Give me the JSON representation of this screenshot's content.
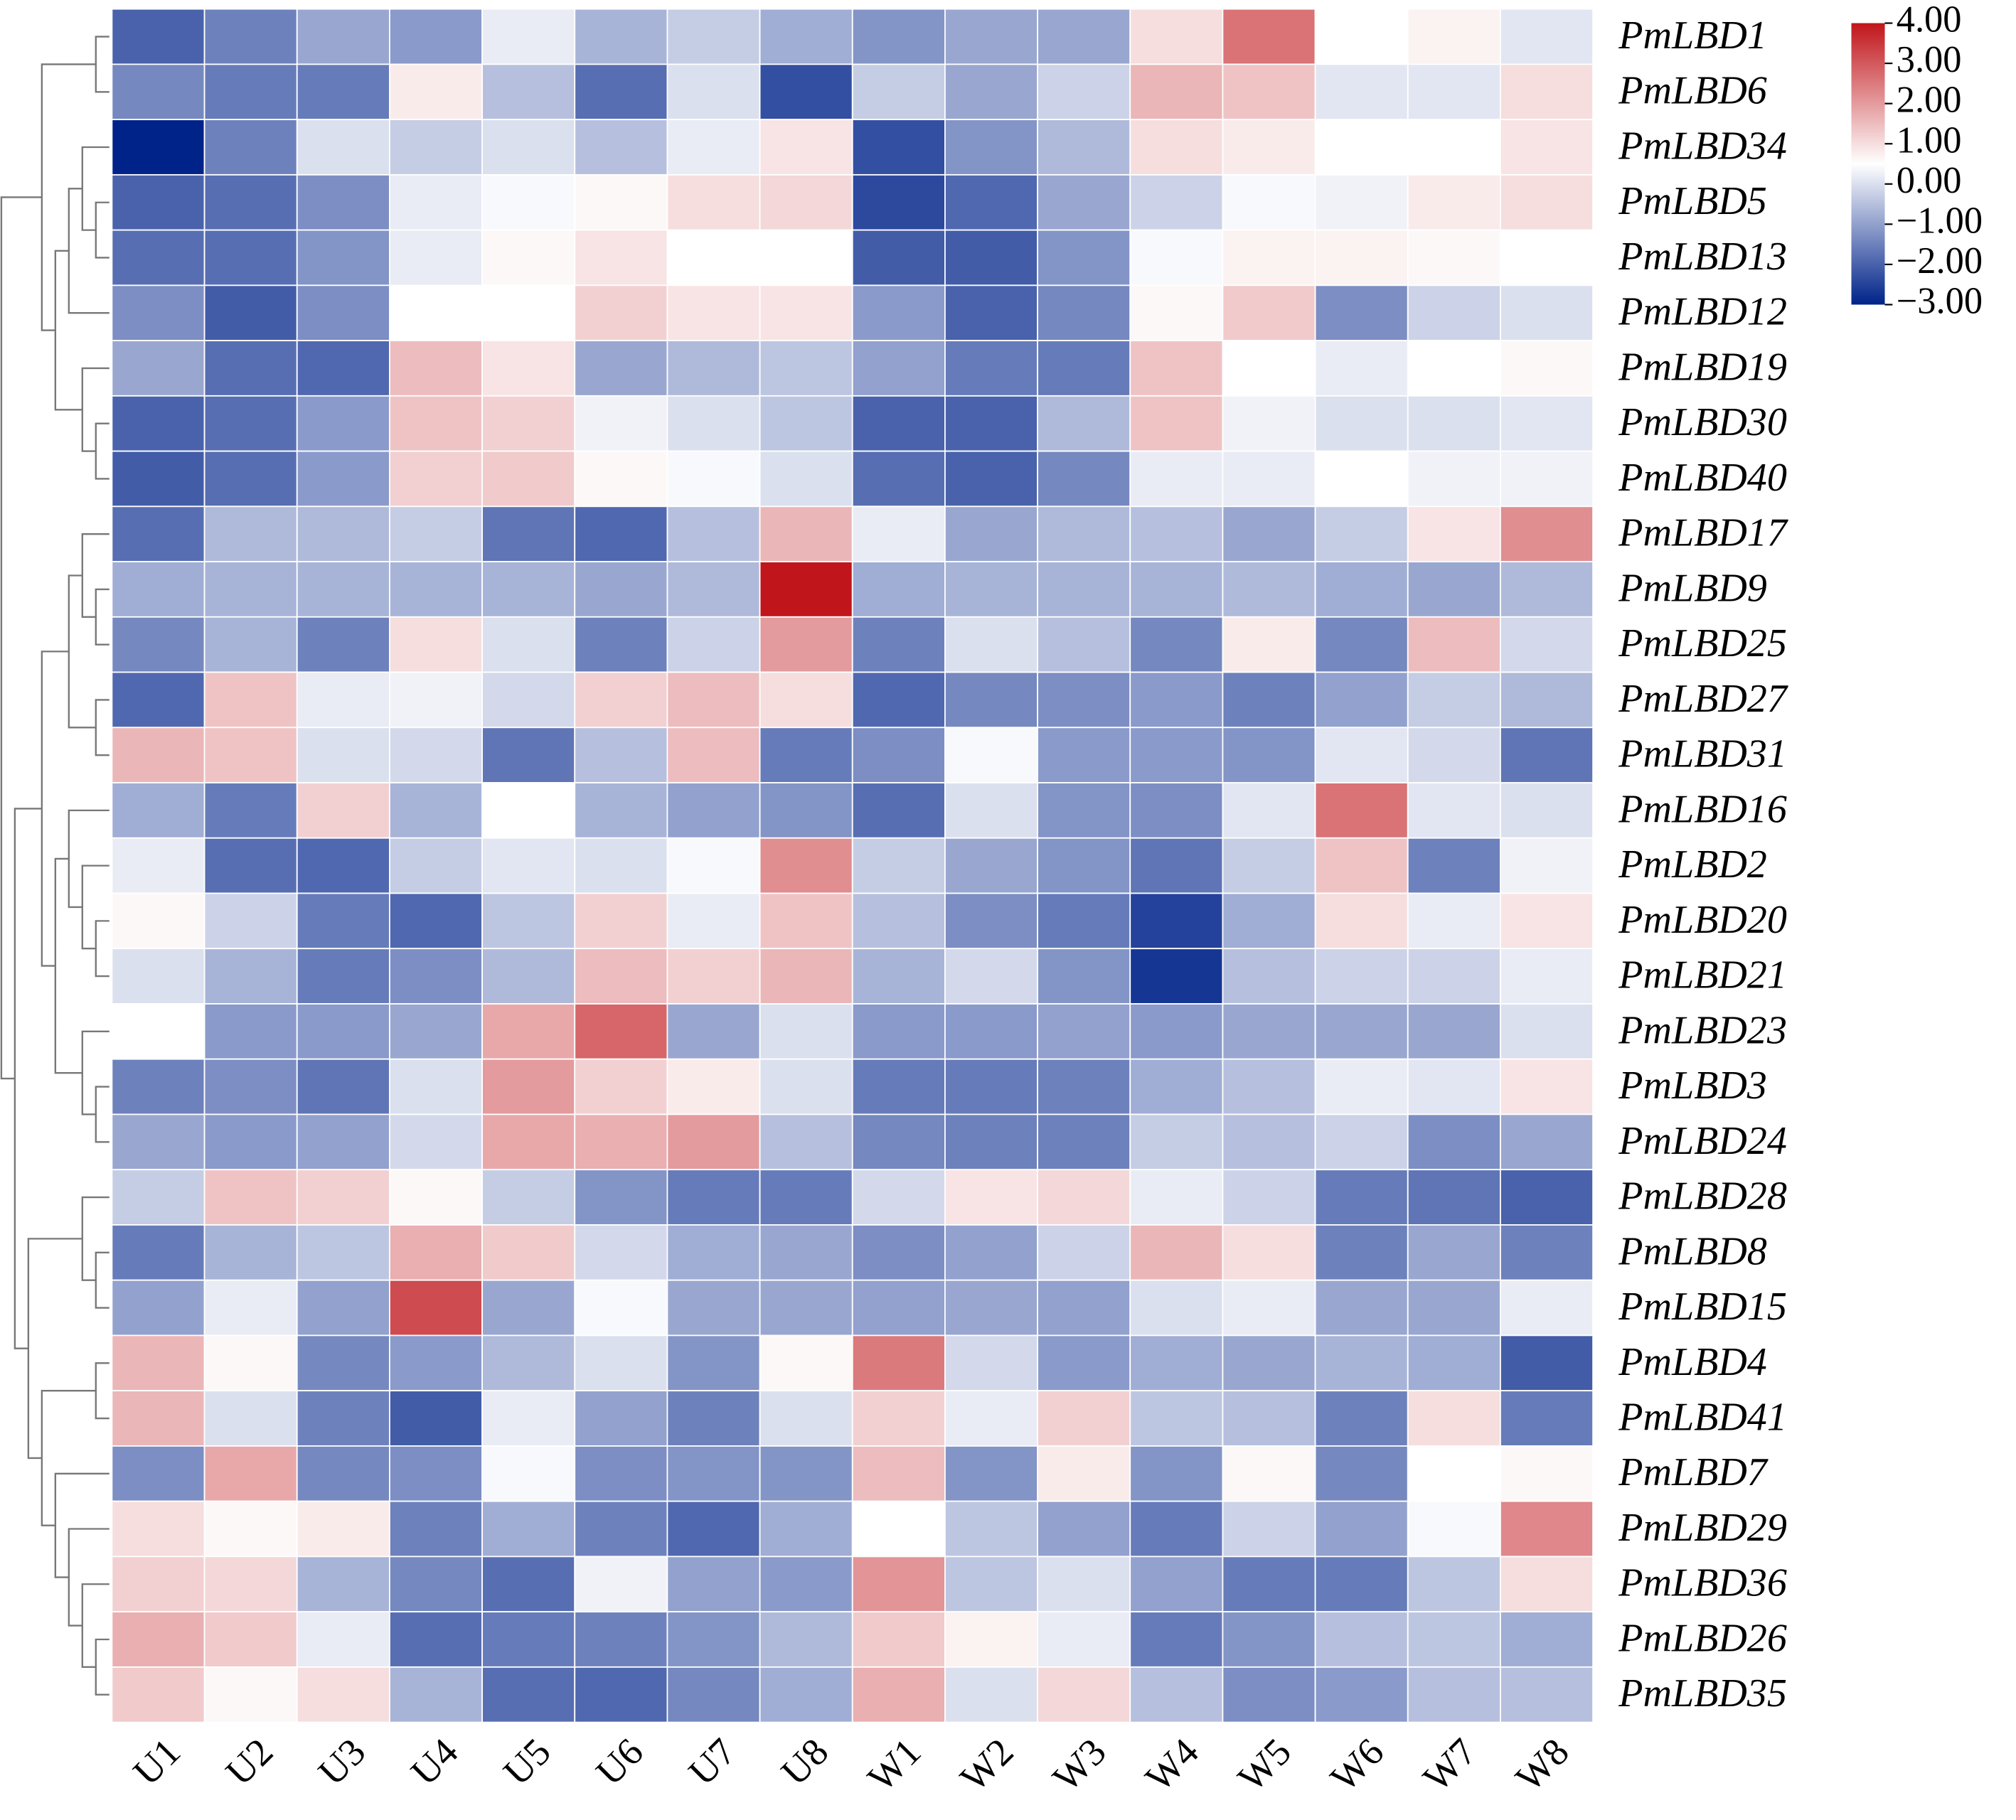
{
  "chart_data": {
    "type": "heatmap",
    "rows": [
      "PmLBD1",
      "PmLBD6",
      "PmLBD34",
      "PmLBD5",
      "PmLBD13",
      "PmLBD12",
      "PmLBD19",
      "PmLBD30",
      "PmLBD40",
      "PmLBD17",
      "PmLBD9",
      "PmLBD25",
      "PmLBD27",
      "PmLBD31",
      "PmLBD16",
      "PmLBD2",
      "PmLBD20",
      "PmLBD21",
      "PmLBD23",
      "PmLBD3",
      "PmLBD24",
      "PmLBD28",
      "PmLBD8",
      "PmLBD15",
      "PmLBD4",
      "PmLBD41",
      "PmLBD7",
      "PmLBD29",
      "PmLBD36",
      "PmLBD26",
      "PmLBD35"
    ],
    "columns": [
      "U1",
      "U2",
      "U3",
      "U4",
      "U5",
      "U6",
      "U7",
      "U8",
      "W1",
      "W2",
      "W3",
      "W4",
      "W5",
      "W6",
      "W7",
      "W8"
    ],
    "values": [
      [
        -2.0,
        -1.5,
        -0.9,
        -1.1,
        0.2,
        -0.7,
        -0.3,
        -0.8,
        -1.2,
        -0.9,
        -0.9,
        1.0,
        2.6,
        0.5,
        0.7,
        0.1
      ],
      [
        -1.4,
        -1.6,
        -1.6,
        0.8,
        -0.5,
        -1.8,
        0.0,
        -2.3,
        -0.3,
        -0.9,
        -0.2,
        1.6,
        1.4,
        0.1,
        0.1,
        1.0
      ],
      [
        -3.0,
        -1.5,
        0.0,
        -0.3,
        0.0,
        -0.5,
        0.2,
        0.9,
        -2.3,
        -1.2,
        -0.6,
        1.0,
        0.8,
        0.5,
        0.5,
        0.9
      ],
      [
        -2.0,
        -1.8,
        -1.3,
        0.2,
        0.4,
        0.6,
        1.0,
        1.1,
        -2.4,
        -1.9,
        -0.9,
        -0.2,
        0.4,
        0.3,
        0.8,
        1.0
      ],
      [
        -1.8,
        -1.8,
        -1.2,
        0.2,
        0.6,
        0.9,
        0.5,
        0.5,
        -2.1,
        -2.1,
        -1.2,
        0.4,
        0.7,
        0.7,
        0.6,
        0.5
      ],
      [
        -1.3,
        -2.1,
        -1.3,
        0.5,
        0.5,
        1.2,
        0.9,
        0.9,
        -1.1,
        -2.0,
        -1.4,
        0.6,
        1.3,
        -1.3,
        -0.2,
        0.0
      ],
      [
        -0.9,
        -1.8,
        -1.9,
        1.5,
        0.9,
        -0.9,
        -0.6,
        -0.4,
        -1.0,
        -1.6,
        -1.6,
        1.4,
        0.5,
        0.2,
        0.5,
        0.6
      ],
      [
        -2.0,
        -1.8,
        -1.1,
        1.4,
        1.2,
        0.3,
        0.0,
        -0.4,
        -2.0,
        -2.0,
        -0.6,
        1.4,
        0.3,
        0.0,
        0.0,
        0.1
      ],
      [
        -2.1,
        -1.8,
        -1.1,
        1.2,
        1.3,
        0.6,
        0.4,
        0.0,
        -1.8,
        -2.0,
        -1.4,
        0.2,
        0.2,
        0.5,
        0.3,
        0.3
      ],
      [
        -1.8,
        -0.6,
        -0.6,
        -0.3,
        -1.7,
        -1.9,
        -0.5,
        1.6,
        0.2,
        -0.9,
        -0.6,
        -0.5,
        -0.9,
        -0.3,
        0.9,
        2.2
      ],
      [
        -0.8,
        -0.7,
        -0.7,
        -0.7,
        -0.7,
        -0.9,
        -0.6,
        4.0,
        -0.8,
        -0.7,
        -0.7,
        -0.7,
        -0.6,
        -0.8,
        -0.9,
        -0.6
      ],
      [
        -1.4,
        -0.7,
        -1.5,
        1.0,
        0.0,
        -1.5,
        -0.2,
        2.0,
        -1.5,
        0.0,
        -0.5,
        -1.4,
        0.8,
        -1.4,
        1.5,
        -0.1
      ],
      [
        -1.9,
        1.4,
        0.2,
        0.3,
        -0.1,
        1.2,
        1.5,
        1.0,
        -1.9,
        -1.4,
        -1.3,
        -1.1,
        -1.5,
        -1.0,
        -0.3,
        -0.6
      ],
      [
        1.6,
        1.4,
        0.0,
        -0.1,
        -1.7,
        -0.5,
        1.5,
        -1.6,
        -1.3,
        0.4,
        -1.1,
        -1.1,
        -1.2,
        0.1,
        -0.1,
        -1.7
      ],
      [
        -0.8,
        -1.6,
        1.2,
        -0.7,
        0.5,
        -0.7,
        -1.0,
        -1.2,
        -1.8,
        0.0,
        -1.2,
        -1.3,
        0.1,
        2.6,
        0.1,
        0.0
      ],
      [
        0.2,
        -1.8,
        -1.9,
        -0.3,
        0.1,
        0.0,
        0.4,
        2.2,
        -0.3,
        -0.9,
        -1.2,
        -1.7,
        -0.3,
        1.4,
        -1.5,
        0.3
      ],
      [
        0.6,
        -0.2,
        -1.6,
        -1.9,
        -0.4,
        1.2,
        0.2,
        1.4,
        -0.5,
        -1.3,
        -1.6,
        -2.5,
        -0.8,
        1.0,
        0.2,
        0.9
      ],
      [
        0.0,
        -0.7,
        -1.6,
        -1.3,
        -0.6,
        1.5,
        1.2,
        1.6,
        -0.7,
        -0.1,
        -1.2,
        -2.7,
        -0.5,
        -0.2,
        -0.2,
        0.2
      ],
      [
        0.5,
        -1.1,
        -1.1,
        -0.9,
        1.8,
        2.8,
        -0.9,
        0.0,
        -1.1,
        -1.1,
        -1.0,
        -1.1,
        -0.9,
        -0.9,
        -0.9,
        0.0
      ],
      [
        -1.5,
        -1.3,
        -1.7,
        0.0,
        2.0,
        1.2,
        0.8,
        0.0,
        -1.6,
        -1.6,
        -1.5,
        -0.8,
        -0.5,
        0.2,
        0.1,
        0.9
      ],
      [
        -0.9,
        -1.1,
        -1.0,
        -0.1,
        1.8,
        1.7,
        2.0,
        -0.5,
        -1.4,
        -1.5,
        -1.5,
        -0.3,
        -0.5,
        -0.2,
        -1.3,
        -0.9
      ],
      [
        -0.3,
        1.4,
        1.2,
        0.6,
        -0.3,
        -1.2,
        -1.6,
        -1.6,
        -0.1,
        0.9,
        1.1,
        0.2,
        -0.2,
        -1.6,
        -1.7,
        -2.0
      ],
      [
        -1.6,
        -0.7,
        -0.4,
        1.7,
        1.3,
        -0.1,
        -0.8,
        -0.9,
        -1.3,
        -1.0,
        -0.2,
        1.6,
        1.0,
        -1.5,
        -0.9,
        -1.5
      ],
      [
        -1.0,
        0.2,
        -1.0,
        3.2,
        -0.9,
        0.4,
        -0.9,
        -0.9,
        -1.0,
        -0.9,
        -1.0,
        0.0,
        0.2,
        -0.9,
        -0.9,
        0.2
      ],
      [
        1.6,
        0.6,
        -1.4,
        -1.1,
        -0.6,
        0.0,
        -1.2,
        0.6,
        2.5,
        -0.1,
        -1.1,
        -0.8,
        -0.9,
        -0.7,
        -0.8,
        -2.1
      ],
      [
        1.6,
        0.0,
        -1.5,
        -2.1,
        0.2,
        -1.0,
        -1.5,
        0.0,
        1.2,
        0.2,
        1.2,
        -0.4,
        -0.5,
        -1.5,
        1.0,
        -1.6
      ],
      [
        -1.3,
        1.8,
        -1.4,
        -1.3,
        0.4,
        -1.3,
        -1.2,
        -1.2,
        1.5,
        -1.2,
        0.8,
        -1.2,
        0.6,
        -1.4,
        0.5,
        0.6
      ],
      [
        1.0,
        0.6,
        0.8,
        -1.5,
        -0.8,
        -1.5,
        -1.9,
        -0.8,
        0.5,
        -0.4,
        -1.0,
        -1.6,
        -0.2,
        -1.0,
        0.4,
        2.3
      ],
      [
        1.2,
        1.1,
        -0.7,
        -1.4,
        -1.8,
        0.3,
        -1.0,
        -1.1,
        2.1,
        -0.4,
        0.0,
        -1.0,
        -1.6,
        -1.6,
        -0.4,
        1.0
      ],
      [
        1.7,
        1.3,
        0.2,
        -1.8,
        -1.6,
        -1.5,
        -1.2,
        -0.6,
        1.3,
        0.7,
        0.2,
        -1.6,
        -1.2,
        -0.5,
        -0.4,
        -0.8
      ],
      [
        1.3,
        0.6,
        1.0,
        -0.7,
        -1.8,
        -1.9,
        -1.4,
        -0.8,
        1.7,
        0.0,
        1.1,
        -0.5,
        -1.3,
        -1.1,
        -0.5,
        -0.5
      ]
    ],
    "colorscale": [
      "#00238a",
      "#ffffff",
      "#c0161b"
    ],
    "zlim": [
      -3,
      4
    ],
    "zticks": [
      {
        "value": 4,
        "label": "4.00"
      },
      {
        "value": 3,
        "label": "3.00"
      },
      {
        "value": 2,
        "label": "2.00"
      },
      {
        "value": 1,
        "label": "1.00"
      },
      {
        "value": 0,
        "label": "0.00"
      },
      {
        "value": -1,
        "label": "−1.00"
      },
      {
        "value": -2,
        "label": "−2.00"
      },
      {
        "value": -3,
        "label": "−3.00"
      }
    ]
  }
}
